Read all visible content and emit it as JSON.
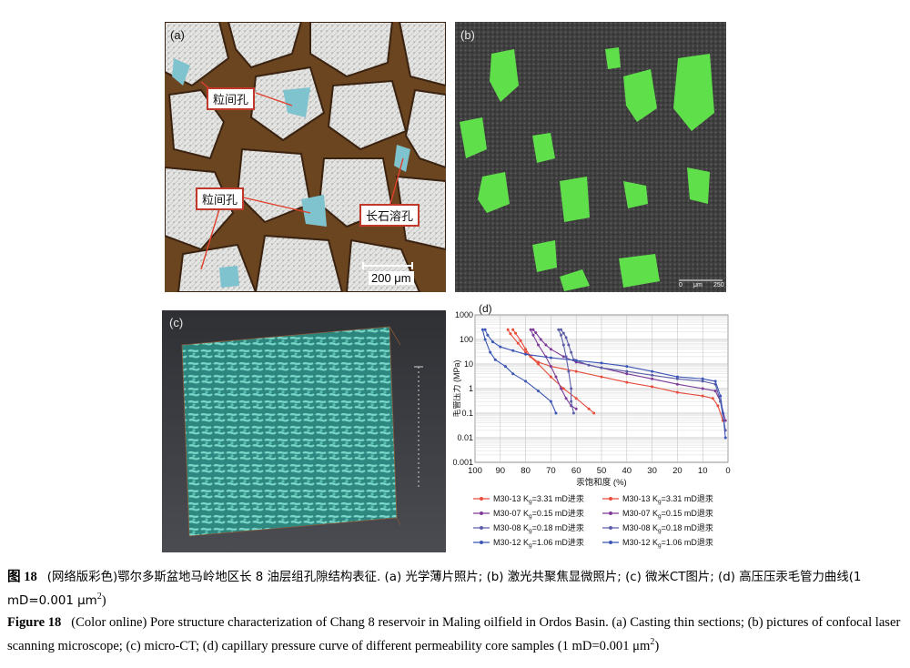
{
  "panel_a": {
    "label": "(a)",
    "callouts": [
      "粒间孔",
      "粒间孔",
      "长石溶孔"
    ],
    "scale_bar": "200 μm"
  },
  "panel_b": {
    "label": "(b)",
    "scale_ticks": [
      "0",
      "μm",
      "250"
    ]
  },
  "panel_c": {
    "label": "(c)"
  },
  "chart_data": {
    "type": "line",
    "label": "(d)",
    "xlabel": "汞饱和度 (%)",
    "ylabel": "毛管压力 (MPa)",
    "x_ticks": [
      "100",
      "90",
      "80",
      "70",
      "60",
      "50",
      "40",
      "30",
      "20",
      "10",
      "0"
    ],
    "y_ticks": [
      "1000",
      "100",
      "10",
      "1",
      "0.1",
      "0.01",
      "0.001"
    ],
    "xlim": [
      100,
      0
    ],
    "ylim": [
      0.001,
      1000
    ],
    "y_scale": "log",
    "grid": true,
    "series": [
      {
        "name": "M30-13 Kg=3.31 mD进汞",
        "color": "#e74c3c",
        "points": [
          [
            85,
            250
          ],
          [
            84,
            180
          ],
          [
            82,
            90
          ],
          [
            80,
            40
          ],
          [
            78,
            20
          ],
          [
            75,
            12
          ],
          [
            70,
            8
          ],
          [
            60,
            5
          ],
          [
            50,
            3
          ],
          [
            40,
            1.8
          ],
          [
            30,
            1.2
          ],
          [
            20,
            0.7
          ],
          [
            10,
            0.5
          ],
          [
            6,
            0.4
          ],
          [
            4,
            0.2
          ],
          [
            2,
            0.05
          ]
        ]
      },
      {
        "name": "M30-13 Kg=3.31 mD退汞",
        "color": "#e74c3c",
        "points": [
          [
            87,
            250
          ],
          [
            86,
            170
          ],
          [
            83,
            70
          ],
          [
            80,
            30
          ],
          [
            75,
            10
          ],
          [
            70,
            3
          ],
          [
            65,
            1
          ],
          [
            60,
            0.4
          ],
          [
            55,
            0.15
          ],
          [
            53,
            0.1
          ]
        ]
      },
      {
        "name": "M30-07 Kg=0.15 mD进汞",
        "color": "#7d3c98",
        "points": [
          [
            77,
            250
          ],
          [
            76,
            190
          ],
          [
            74,
            100
          ],
          [
            72,
            60
          ],
          [
            70,
            40
          ],
          [
            65,
            20
          ],
          [
            60,
            12
          ],
          [
            50,
            7
          ],
          [
            40,
            4
          ],
          [
            30,
            2.5
          ],
          [
            20,
            1.5
          ],
          [
            10,
            1
          ],
          [
            5,
            0.8
          ],
          [
            3,
            0.3
          ],
          [
            1,
            0.05
          ]
        ]
      },
      {
        "name": "M30-07 Kg=0.15 mD退汞",
        "color": "#7d3c98",
        "points": [
          [
            78,
            250
          ],
          [
            77,
            150
          ],
          [
            75,
            60
          ],
          [
            72,
            20
          ],
          [
            70,
            8
          ],
          [
            68,
            3
          ],
          [
            66,
            1
          ],
          [
            64,
            0.4
          ],
          [
            62,
            0.2
          ],
          [
            60,
            0.15
          ]
        ]
      },
      {
        "name": "M30-08 Kg=0.18 mD进汞",
        "color": "#5b5ea6",
        "points": [
          [
            66,
            250
          ],
          [
            65,
            180
          ],
          [
            64,
            120
          ],
          [
            63,
            60
          ],
          [
            62,
            30
          ],
          [
            61,
            15
          ],
          [
            55,
            9
          ],
          [
            50,
            7
          ],
          [
            40,
            5
          ],
          [
            30,
            3.5
          ],
          [
            20,
            2.5
          ],
          [
            10,
            2
          ],
          [
            5,
            1.5
          ],
          [
            3,
            0.3
          ],
          [
            1,
            0.02
          ]
        ]
      },
      {
        "name": "M30-08 Kg=0.18 mD退汞",
        "color": "#5b5ea6",
        "points": [
          [
            67,
            250
          ],
          [
            66,
            150
          ],
          [
            65,
            60
          ],
          [
            64,
            20
          ],
          [
            63,
            5
          ],
          [
            62,
            1
          ],
          [
            62,
            0.3
          ],
          [
            61,
            0.1
          ]
        ]
      },
      {
        "name": "M30-12 Kg=1.06 mD进汞",
        "color": "#3b56b6",
        "points": [
          [
            96,
            250
          ],
          [
            95,
            150
          ],
          [
            93,
            80
          ],
          [
            90,
            50
          ],
          [
            85,
            35
          ],
          [
            80,
            25
          ],
          [
            70,
            18
          ],
          [
            60,
            14
          ],
          [
            50,
            11
          ],
          [
            40,
            8
          ],
          [
            30,
            5
          ],
          [
            20,
            3
          ],
          [
            10,
            2.5
          ],
          [
            5,
            2
          ],
          [
            3,
            0.5
          ],
          [
            2,
            0.1
          ],
          [
            1,
            0.01
          ]
        ]
      },
      {
        "name": "M30-12 Kg=1.06 mD退汞",
        "color": "#3b56b6",
        "points": [
          [
            97,
            250
          ],
          [
            96,
            100
          ],
          [
            94,
            30
          ],
          [
            92,
            15
          ],
          [
            88,
            8
          ],
          [
            85,
            4
          ],
          [
            80,
            2
          ],
          [
            75,
            0.8
          ],
          [
            70,
            0.3
          ],
          [
            68,
            0.1
          ]
        ]
      }
    ]
  },
  "legend": [
    [
      "M30-13 K",
      "g",
      "=3.31 mD进汞",
      "#e74c3c"
    ],
    [
      "M30-13 K",
      "g",
      "=3.31 mD退汞",
      "#e74c3c"
    ],
    [
      "M30-07 K",
      "g",
      "=0.15 mD进汞",
      "#7d3c98"
    ],
    [
      "M30-07 K",
      "g",
      "=0.15 mD退汞",
      "#7d3c98"
    ],
    [
      "M30-08 K",
      "g",
      "=0.18 mD进汞",
      "#5b5ea6"
    ],
    [
      "M30-08 K",
      "g",
      "=0.18 mD退汞",
      "#5b5ea6"
    ],
    [
      "M30-12 K",
      "g",
      "=1.06 mD进汞",
      "#3b56b6"
    ],
    [
      "M30-12 K",
      "g",
      "=1.06 mD退汞",
      "#3b56b6"
    ]
  ],
  "caption_cn": {
    "label": "图 18",
    "text": "(网络版彩色)鄂尔多斯盆地马岭地区长 8 油层组孔隙结构表征. (a) 光学薄片照片; (b) 激光共聚焦显微照片; (c) 微米CT图片; (d) 高压压汞毛管力曲线(1 mD=0.001 μm",
    "sup": "2",
    "end": ")"
  },
  "caption_en": {
    "label": "Figure 18",
    "text": "(Color online) Pore structure characterization of Chang 8 reservoir in Maling oilfield in Ordos Basin. (a) Casting thin sections; (b) pictures of confocal laser scanning microscope; (c) micro-CT; (d) capillary pressure curve of different permeability core samples (1 mD=0.001 μm",
    "sup": "2",
    "end": ")"
  }
}
